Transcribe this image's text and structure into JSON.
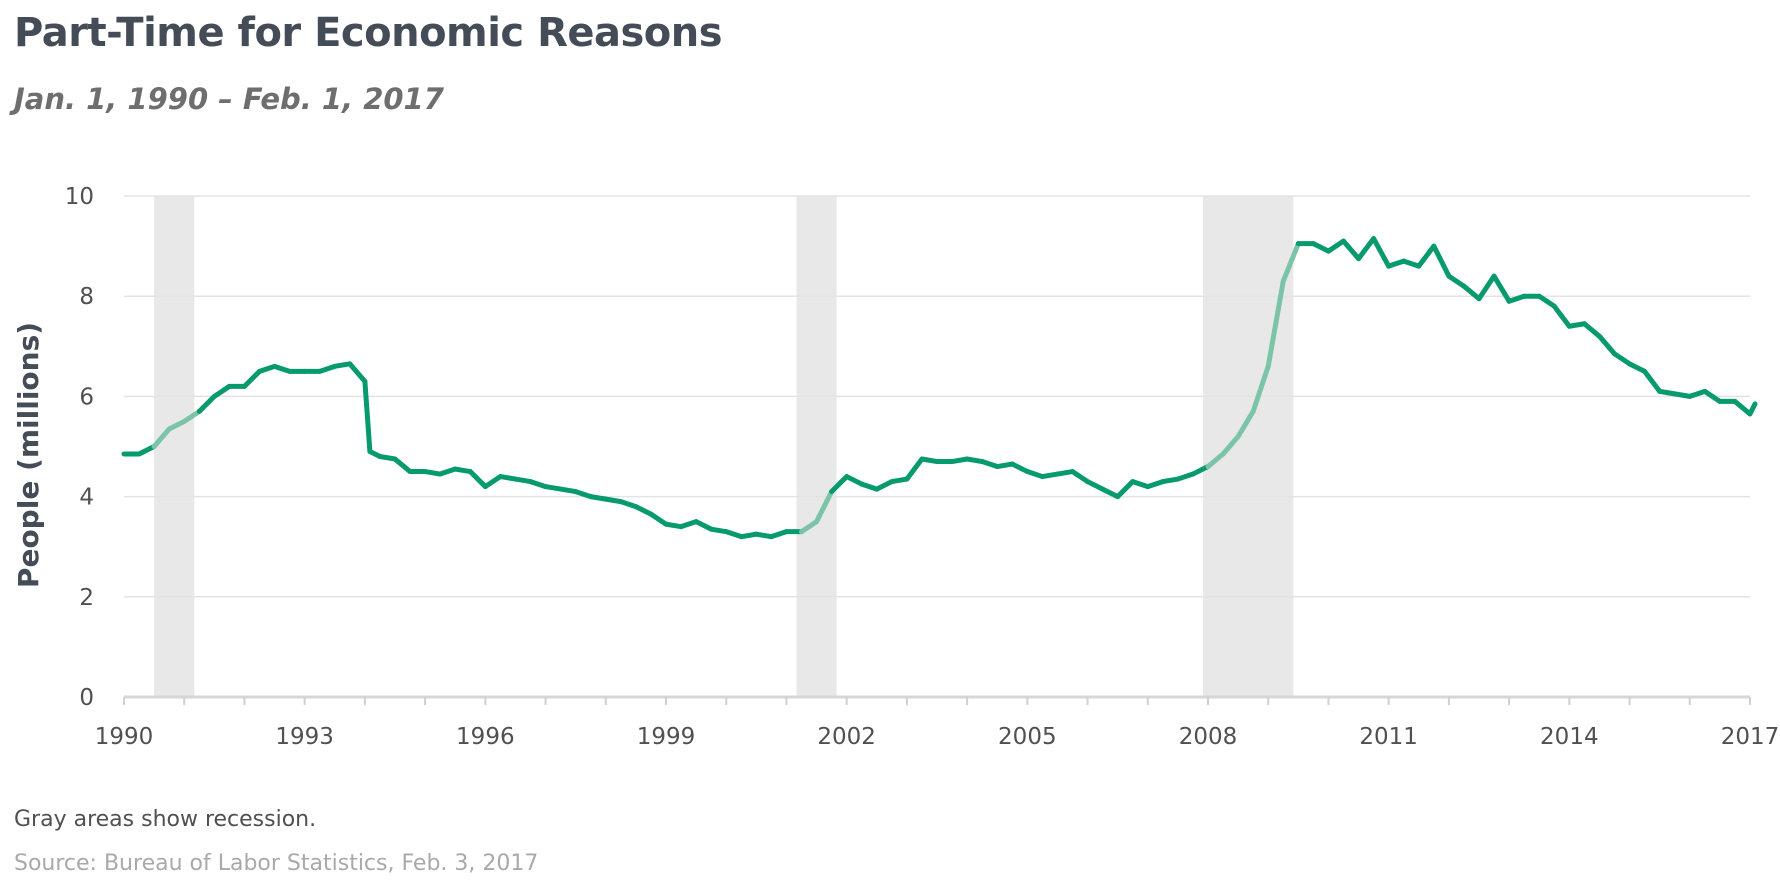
{
  "chart_data": {
    "type": "line",
    "title": "Part-Time for Economic Reasons",
    "subtitle": "Jan. 1, 1990 – Feb. 1, 2017",
    "ylabel": "People (millions)",
    "xlabel": "",
    "ylim": [
      0,
      10
    ],
    "yticks": [
      "0",
      "2",
      "4",
      "6",
      "8",
      "10"
    ],
    "xticks": [
      "1990",
      "1993",
      "1996",
      "1999",
      "2002",
      "2005",
      "2008",
      "2011",
      "2014",
      "2017"
    ],
    "grid": true,
    "line_color": "#079a6c",
    "recession_line_color": "#7cc4a8",
    "recession_shade_color": "#e8e8e8",
    "recessions": [
      {
        "start": "1990-07",
        "end": "1991-03"
      },
      {
        "start": "2001-03",
        "end": "2001-11"
      },
      {
        "start": "2007-12",
        "end": "2009-06"
      }
    ],
    "series": [
      {
        "x": [
          "1990-01",
          "1990-04",
          "1990-07",
          "1990-10",
          "1991-01",
          "1991-04",
          "1991-07",
          "1991-10",
          "1992-01",
          "1992-04",
          "1992-07",
          "1992-10",
          "1993-01",
          "1993-04",
          "1993-07",
          "1993-10",
          "1994-01",
          "1994-02",
          "1994-04",
          "1994-07",
          "1994-10",
          "1995-01",
          "1995-04",
          "1995-07",
          "1995-10",
          "1996-01",
          "1996-04",
          "1996-07",
          "1996-10",
          "1997-01",
          "1997-04",
          "1997-07",
          "1997-10",
          "1998-01",
          "1998-04",
          "1998-07",
          "1998-10",
          "1999-01",
          "1999-04",
          "1999-07",
          "1999-10",
          "2000-01",
          "2000-04",
          "2000-07",
          "2000-10",
          "2001-01",
          "2001-04",
          "2001-07",
          "2001-10",
          "2002-01",
          "2002-04",
          "2002-07",
          "2002-10",
          "2003-01",
          "2003-04",
          "2003-07",
          "2003-10",
          "2004-01",
          "2004-04",
          "2004-07",
          "2004-10",
          "2005-01",
          "2005-04",
          "2005-07",
          "2005-10",
          "2006-01",
          "2006-04",
          "2006-07",
          "2006-10",
          "2007-01",
          "2007-04",
          "2007-07",
          "2007-10",
          "2008-01",
          "2008-04",
          "2008-07",
          "2008-10",
          "2009-01",
          "2009-04",
          "2009-07",
          "2009-10",
          "2010-01",
          "2010-04",
          "2010-07",
          "2010-10",
          "2011-01",
          "2011-04",
          "2011-07",
          "2011-10",
          "2012-01",
          "2012-04",
          "2012-07",
          "2012-10",
          "2013-01",
          "2013-04",
          "2013-07",
          "2013-10",
          "2014-01",
          "2014-04",
          "2014-07",
          "2014-10",
          "2015-01",
          "2015-04",
          "2015-07",
          "2015-10",
          "2016-01",
          "2016-04",
          "2016-07",
          "2016-10",
          "2017-01",
          "2017-02"
        ],
        "values": [
          4.85,
          4.85,
          5.0,
          5.35,
          5.5,
          5.7,
          6.0,
          6.2,
          6.2,
          6.5,
          6.6,
          6.5,
          6.5,
          6.5,
          6.6,
          6.65,
          6.3,
          4.9,
          4.8,
          4.75,
          4.5,
          4.5,
          4.45,
          4.55,
          4.5,
          4.2,
          4.4,
          4.35,
          4.3,
          4.2,
          4.15,
          4.1,
          4.0,
          3.95,
          3.9,
          3.8,
          3.65,
          3.45,
          3.4,
          3.5,
          3.35,
          3.3,
          3.2,
          3.25,
          3.2,
          3.3,
          3.3,
          3.5,
          4.1,
          4.4,
          4.25,
          4.15,
          4.3,
          4.35,
          4.75,
          4.7,
          4.7,
          4.75,
          4.7,
          4.6,
          4.65,
          4.5,
          4.4,
          4.45,
          4.5,
          4.3,
          4.15,
          4.0,
          4.3,
          4.2,
          4.3,
          4.35,
          4.45,
          4.6,
          4.85,
          5.2,
          5.7,
          6.6,
          8.3,
          9.05,
          9.05,
          8.9,
          9.1,
          8.75,
          9.15,
          8.6,
          8.7,
          8.6,
          9.0,
          8.4,
          8.2,
          7.95,
          8.4,
          7.9,
          8.0,
          8.0,
          7.8,
          7.4,
          7.45,
          7.2,
          6.85,
          6.65,
          6.5,
          6.1,
          6.05,
          6.0,
          6.1,
          5.9,
          5.9,
          5.65,
          5.85
        ]
      }
    ]
  },
  "footer": {
    "note": "Gray areas show recession.",
    "source": "Source: Bureau of Labor Statistics, Feb. 3, 2017"
  }
}
